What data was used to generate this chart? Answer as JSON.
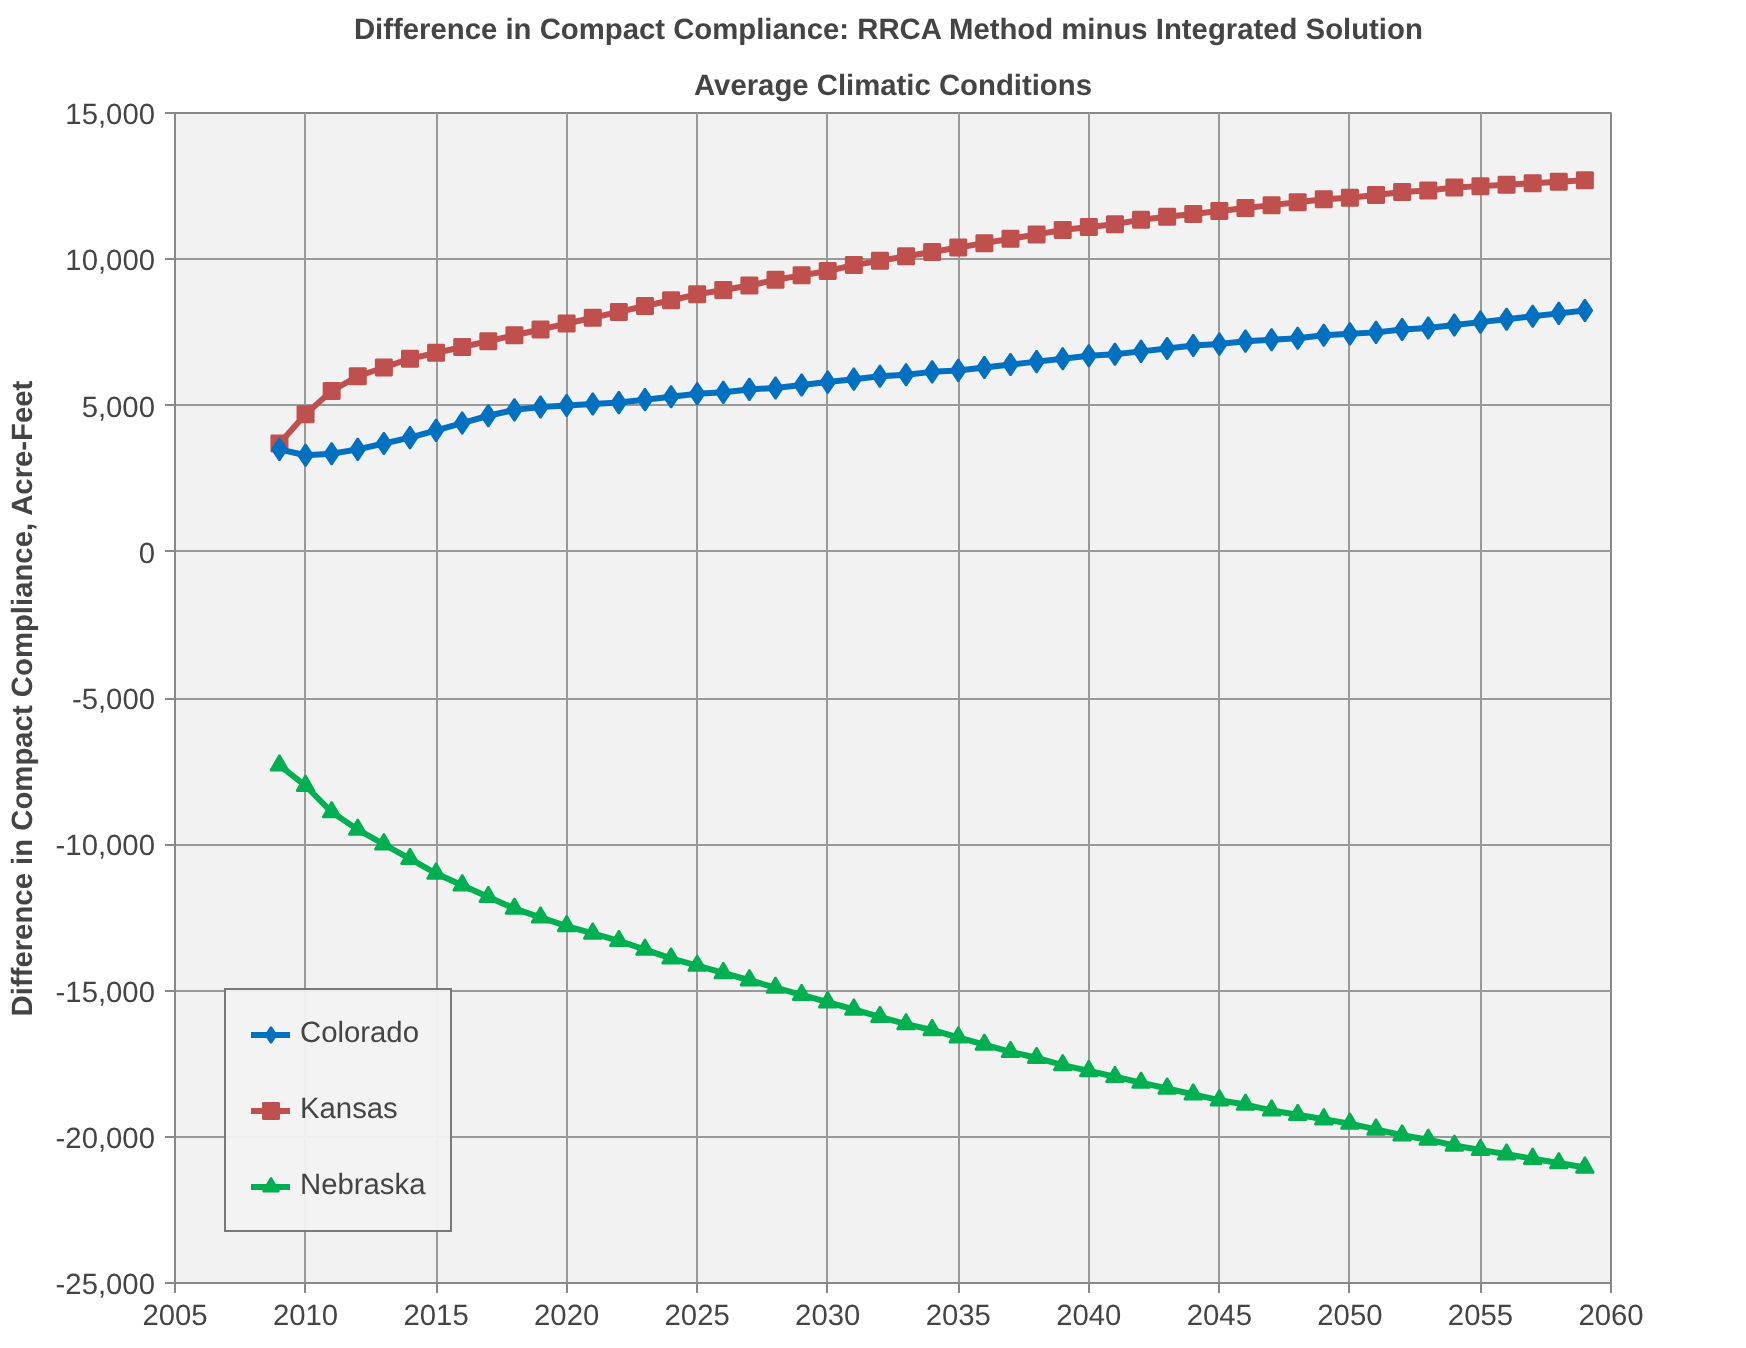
{
  "chart_data": {
    "type": "line",
    "title": "Difference in Compact Compliance: RRCA  Method minus Integrated Solution",
    "subtitle": "Average Climatic Conditions",
    "ylabel": "Difference in Compact Compliance, Acre-Feet",
    "x": [
      2009,
      2010,
      2011,
      2012,
      2013,
      2014,
      2015,
      2016,
      2017,
      2018,
      2019,
      2020,
      2021,
      2022,
      2023,
      2024,
      2025,
      2026,
      2027,
      2028,
      2029,
      2030,
      2031,
      2032,
      2033,
      2034,
      2035,
      2036,
      2037,
      2038,
      2039,
      2040,
      2041,
      2042,
      2043,
      2044,
      2045,
      2046,
      2047,
      2048,
      2049,
      2050,
      2051,
      2052,
      2053,
      2054,
      2055,
      2056,
      2057,
      2058,
      2059
    ],
    "series": [
      {
        "name": "Colorado",
        "color": "#0070c0",
        "marker": "diamond",
        "values": [
          3500,
          3300,
          3350,
          3500,
          3700,
          3900,
          4150,
          4400,
          4650,
          4850,
          4950,
          5000,
          5050,
          5100,
          5200,
          5300,
          5400,
          5450,
          5550,
          5600,
          5700,
          5800,
          5900,
          6000,
          6050,
          6150,
          6200,
          6300,
          6400,
          6500,
          6600,
          6700,
          6750,
          6850,
          6950,
          7050,
          7100,
          7200,
          7250,
          7300,
          7400,
          7450,
          7500,
          7600,
          7650,
          7750,
          7850,
          7950,
          8050,
          8150,
          8250
        ]
      },
      {
        "name": "Kansas",
        "color": "#c0504d",
        "marker": "square",
        "values": [
          3700,
          4700,
          5500,
          6000,
          6300,
          6600,
          6800,
          7000,
          7200,
          7400,
          7600,
          7800,
          8000,
          8200,
          8400,
          8600,
          8800,
          8950,
          9100,
          9300,
          9450,
          9600,
          9800,
          9950,
          10100,
          10250,
          10400,
          10550,
          10700,
          10850,
          11000,
          11100,
          11200,
          11350,
          11450,
          11550,
          11650,
          11750,
          11850,
          11950,
          12050,
          12100,
          12200,
          12300,
          12350,
          12450,
          12500,
          12550,
          12600,
          12650,
          12700
        ]
      },
      {
        "name": "Nebraska",
        "color": "#00b050",
        "marker": "triangle",
        "values": [
          -7300,
          -8000,
          -8900,
          -9500,
          -10000,
          -10500,
          -11000,
          -11400,
          -11800,
          -12200,
          -12500,
          -12800,
          -13050,
          -13300,
          -13600,
          -13900,
          -14150,
          -14400,
          -14650,
          -14900,
          -15150,
          -15400,
          -15650,
          -15900,
          -16150,
          -16350,
          -16600,
          -16850,
          -17100,
          -17300,
          -17550,
          -17750,
          -17950,
          -18150,
          -18350,
          -18550,
          -18750,
          -18900,
          -19100,
          -19250,
          -19400,
          -19550,
          -19750,
          -19950,
          -20100,
          -20300,
          -20450,
          -20600,
          -20750,
          -20900,
          -21050
        ]
      }
    ],
    "xlim": [
      2005,
      2060
    ],
    "xticks": [
      2005,
      2010,
      2015,
      2020,
      2025,
      2030,
      2035,
      2040,
      2045,
      2050,
      2055,
      2060
    ],
    "ylim": [
      -25000,
      15000
    ],
    "yticks": [
      {
        "value": -25000,
        "label": "-25,000"
      },
      {
        "value": -20000,
        "label": "-20,000"
      },
      {
        "value": -15000,
        "label": "-15,000"
      },
      {
        "value": -10000,
        "label": "-10,000"
      },
      {
        "value": -5000,
        "label": "-5,000"
      },
      0,
      {
        "value": 5000,
        "label": "5,000"
      },
      {
        "value": 10000,
        "label": "10,000"
      },
      {
        "value": 15000,
        "label": "15,000"
      }
    ],
    "grid": true,
    "legend": "bottom left",
    "line_style": "solid"
  }
}
